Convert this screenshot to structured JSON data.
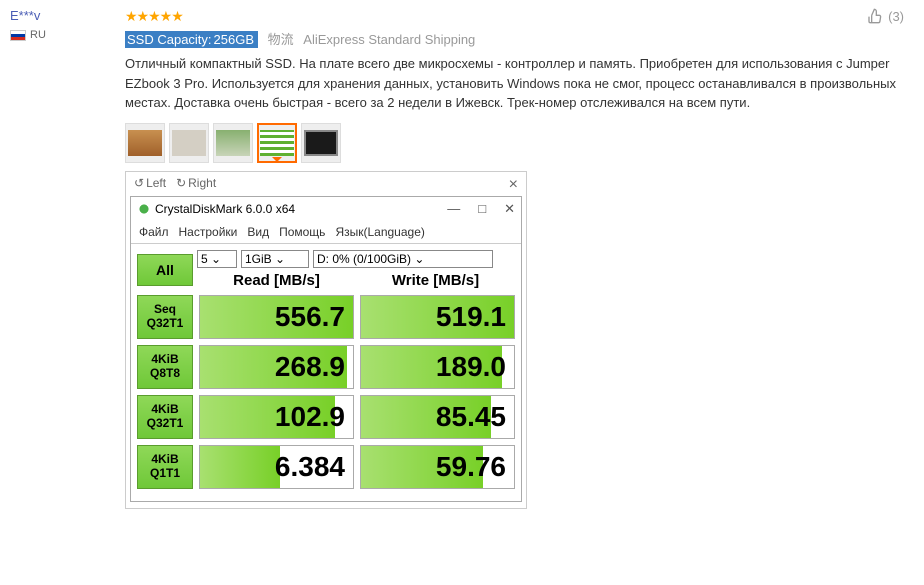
{
  "user": {
    "name": "E***v",
    "country": "RU"
  },
  "rating": 5,
  "helpful_count": "(3)",
  "capacity": {
    "label": "SSD Capacity:",
    "value": "256GB"
  },
  "logistics_cn": "物流",
  "shipping": "AliExpress Standard Shipping",
  "review": "Отличный компактный SSD. На плате всего две микросхемы - контроллер и память. Приобретен для использования с Jumper EZbook 3 Pro. Используется для хранения данных, установить Windows пока не смог, процесс останавливался в произвольных местах. Доставка очень быстрая - всего за 2 недели в Ижевск. Трек-номер отслеживался на всем пути.",
  "lightbox": {
    "left": "Left",
    "right": "Right",
    "close": "×"
  },
  "cdm": {
    "title": "CrystalDiskMark 6.0.0 x64",
    "menu": [
      "Файл",
      "Настройки",
      "Вид",
      "Помощь",
      "Язык(Language)"
    ],
    "all_btn": "All",
    "sel_runs": "5",
    "sel_size": "1GiB",
    "sel_drive": "D: 0% (0/100GiB)",
    "hdr_read": "Read [MB/s]",
    "hdr_write": "Write [MB/s]",
    "rows": [
      {
        "l1": "Seq",
        "l2": "Q32T1",
        "read": "556.7",
        "read_pct": 100,
        "write": "519.1",
        "write_pct": 100
      },
      {
        "l1": "4KiB",
        "l2": "Q8T8",
        "read": "268.9",
        "read_pct": 96,
        "write": "189.0",
        "write_pct": 92
      },
      {
        "l1": "4KiB",
        "l2": "Q32T1",
        "read": "102.9",
        "read_pct": 88,
        "write": "85.45",
        "write_pct": 85
      },
      {
        "l1": "4KiB",
        "l2": "Q1T1",
        "read": "6.384",
        "read_pct": 52,
        "write": "59.76",
        "write_pct": 80
      }
    ]
  }
}
